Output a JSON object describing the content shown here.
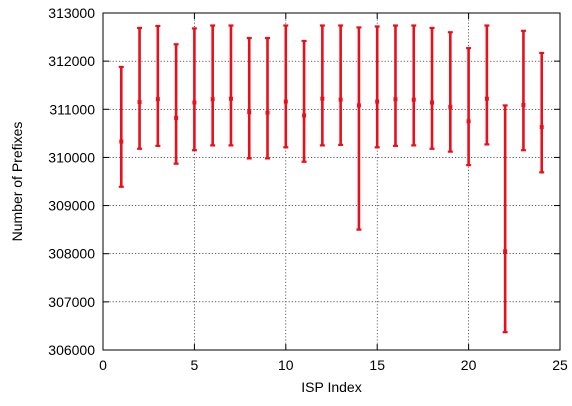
{
  "chart_data": {
    "type": "errorbar",
    "title": "",
    "xlabel": "ISP Index",
    "ylabel": "Number of Prefixes",
    "xlim": [
      0,
      25
    ],
    "ylim": [
      306000,
      313000
    ],
    "x_ticks": [
      0,
      5,
      10,
      15,
      20,
      25
    ],
    "y_ticks": [
      306000,
      307000,
      308000,
      309000,
      310000,
      311000,
      312000,
      313000
    ],
    "grid": true,
    "legend": "none",
    "series": [
      {
        "color": "#e8101a",
        "points": [
          {
            "x": 1,
            "y": 310330,
            "ymin": 309390,
            "ymax": 311880
          },
          {
            "x": 2,
            "y": 311150,
            "ymin": 310180,
            "ymax": 312690
          },
          {
            "x": 3,
            "y": 311210,
            "ymin": 310240,
            "ymax": 312730
          },
          {
            "x": 4,
            "y": 310820,
            "ymin": 309870,
            "ymax": 312350
          },
          {
            "x": 5,
            "y": 311140,
            "ymin": 310150,
            "ymax": 312680
          },
          {
            "x": 6,
            "y": 311210,
            "ymin": 310250,
            "ymax": 312740
          },
          {
            "x": 7,
            "y": 311220,
            "ymin": 310250,
            "ymax": 312740
          },
          {
            "x": 8,
            "y": 310940,
            "ymin": 309980,
            "ymax": 312480
          },
          {
            "x": 9,
            "y": 310930,
            "ymin": 309980,
            "ymax": 312480
          },
          {
            "x": 10,
            "y": 311160,
            "ymin": 310210,
            "ymax": 312740
          },
          {
            "x": 11,
            "y": 310870,
            "ymin": 309910,
            "ymax": 312420
          },
          {
            "x": 12,
            "y": 311220,
            "ymin": 310250,
            "ymax": 312740
          },
          {
            "x": 13,
            "y": 311200,
            "ymin": 310260,
            "ymax": 312740
          },
          {
            "x": 14,
            "y": 311080,
            "ymin": 308500,
            "ymax": 312700
          },
          {
            "x": 15,
            "y": 311160,
            "ymin": 310210,
            "ymax": 312720
          },
          {
            "x": 16,
            "y": 311210,
            "ymin": 310240,
            "ymax": 312740
          },
          {
            "x": 17,
            "y": 311200,
            "ymin": 310250,
            "ymax": 312740
          },
          {
            "x": 18,
            "y": 311140,
            "ymin": 310180,
            "ymax": 312690
          },
          {
            "x": 19,
            "y": 311050,
            "ymin": 310120,
            "ymax": 312600
          },
          {
            "x": 20,
            "y": 310750,
            "ymin": 309840,
            "ymax": 312270
          },
          {
            "x": 21,
            "y": 311220,
            "ymin": 310270,
            "ymax": 312740
          },
          {
            "x": 22,
            "y": 308050,
            "ymin": 306370,
            "ymax": 311080
          },
          {
            "x": 23,
            "y": 311090,
            "ymin": 310150,
            "ymax": 312630
          },
          {
            "x": 24,
            "y": 310630,
            "ymin": 309690,
            "ymax": 312170
          }
        ]
      }
    ]
  }
}
